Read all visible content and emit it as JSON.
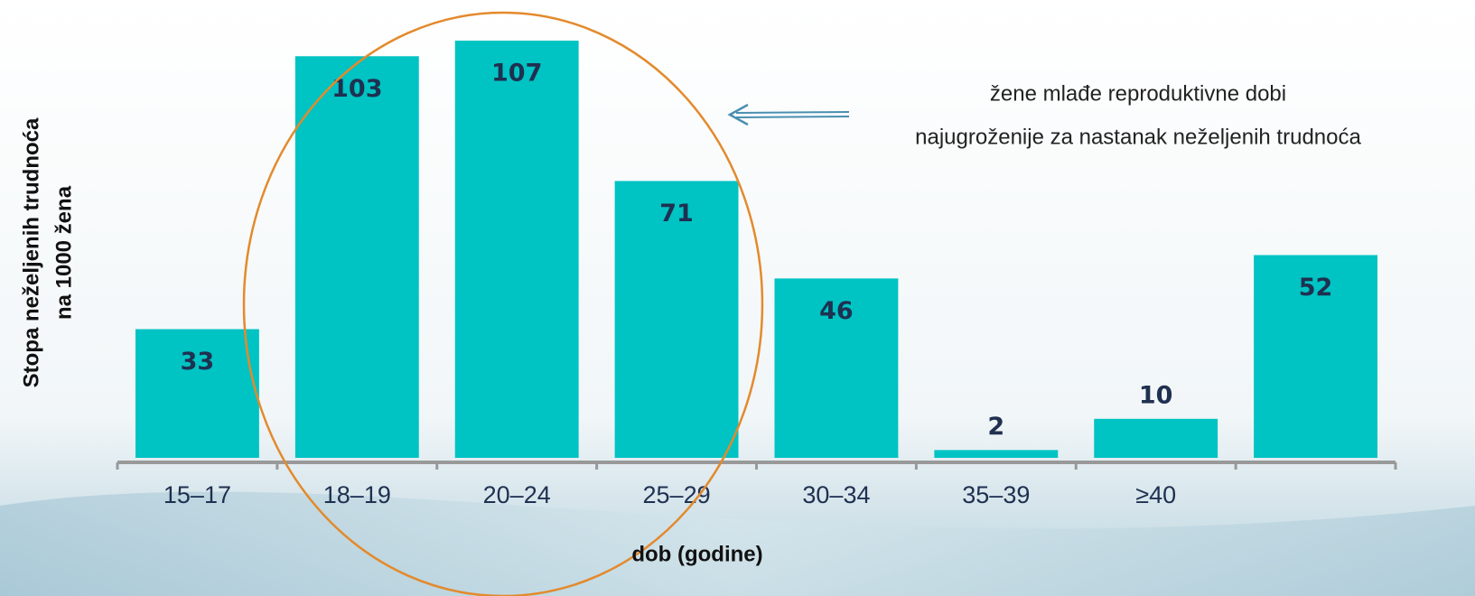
{
  "chart_data": {
    "type": "bar",
    "y_label": [
      "Stopa neželjenih trudnoća",
      "na 1000 žena"
    ],
    "x_label": "dob (godine)",
    "annotation": [
      "žene mlađe reproduktivne dobi",
      "najugroženije za nastanak neželjenih trudnoća"
    ],
    "categories": [
      "15–17",
      "18–19",
      "20–24",
      "25–29",
      "30–34",
      "35–39",
      "≥40",
      null
    ],
    "values": [
      33,
      103,
      107,
      71,
      46,
      2,
      10,
      52
    ],
    "color": "#00c3c3"
  }
}
